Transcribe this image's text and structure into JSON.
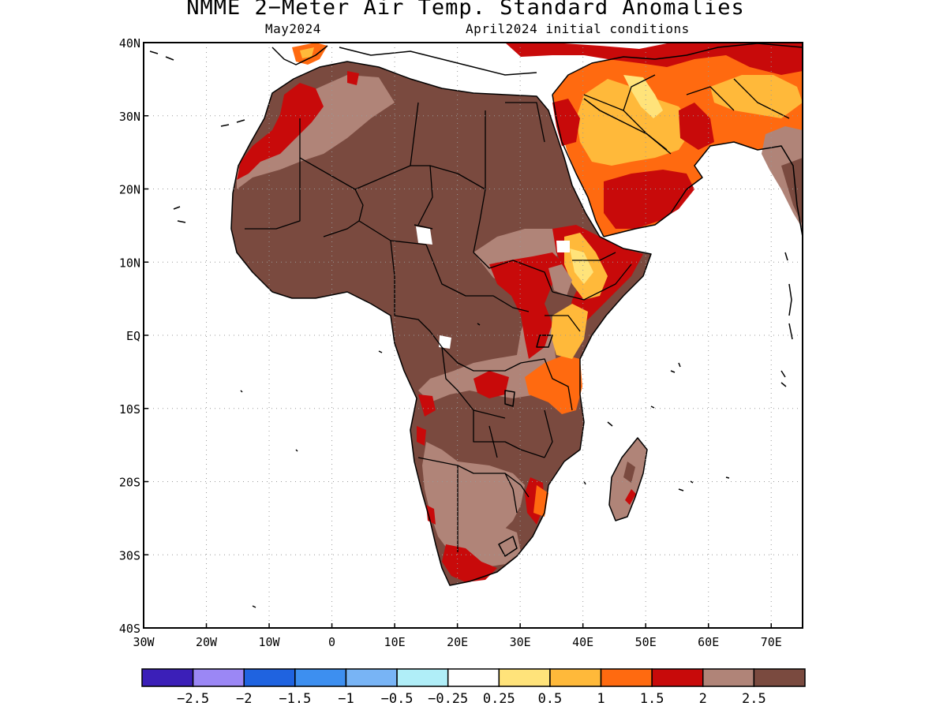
{
  "title": "NMME 2−Meter Air Temp. Standard Anomalies",
  "subtitle_left": "May2024",
  "subtitle_right": "April2024 initial conditions",
  "map": {
    "lon_range": [
      -30,
      75
    ],
    "lat_range": [
      -40,
      40
    ],
    "gridlines": "dotted",
    "lon_ticks": [
      {
        "value": -30,
        "label": "30W"
      },
      {
        "value": -20,
        "label": "20W"
      },
      {
        "value": -10,
        "label": "10W"
      },
      {
        "value": 0,
        "label": "0"
      },
      {
        "value": 10,
        "label": "10E"
      },
      {
        "value": 20,
        "label": "20E"
      },
      {
        "value": 30,
        "label": "30E"
      },
      {
        "value": 40,
        "label": "40E"
      },
      {
        "value": 50,
        "label": "50E"
      },
      {
        "value": 60,
        "label": "60E"
      },
      {
        "value": 70,
        "label": "70E"
      }
    ],
    "lat_ticks": [
      {
        "value": 40,
        "label": "40N"
      },
      {
        "value": 30,
        "label": "30N"
      },
      {
        "value": 20,
        "label": "20N"
      },
      {
        "value": 10,
        "label": "10N"
      },
      {
        "value": 0,
        "label": "EQ"
      },
      {
        "value": -10,
        "label": "10S"
      },
      {
        "value": -20,
        "label": "20S"
      },
      {
        "value": -30,
        "label": "30S"
      },
      {
        "value": -40,
        "label": "40S"
      }
    ]
  },
  "colorbar": {
    "colors": [
      "#3b1fb8",
      "#9b87f5",
      "#1f63e0",
      "#3d8ff0",
      "#78b4f5",
      "#b0eef8",
      "#ffffff",
      "#ffe37a",
      "#ffb93a",
      "#ff6a10",
      "#c80a0a",
      "#b08478",
      "#7a4a3f"
    ],
    "labels": [
      "−2.5",
      "−2",
      "−1.5",
      "−1",
      "−0.5",
      "−0.25",
      "0.25",
      "0.5",
      "1",
      "1.5",
      "2",
      "2.5"
    ]
  }
}
